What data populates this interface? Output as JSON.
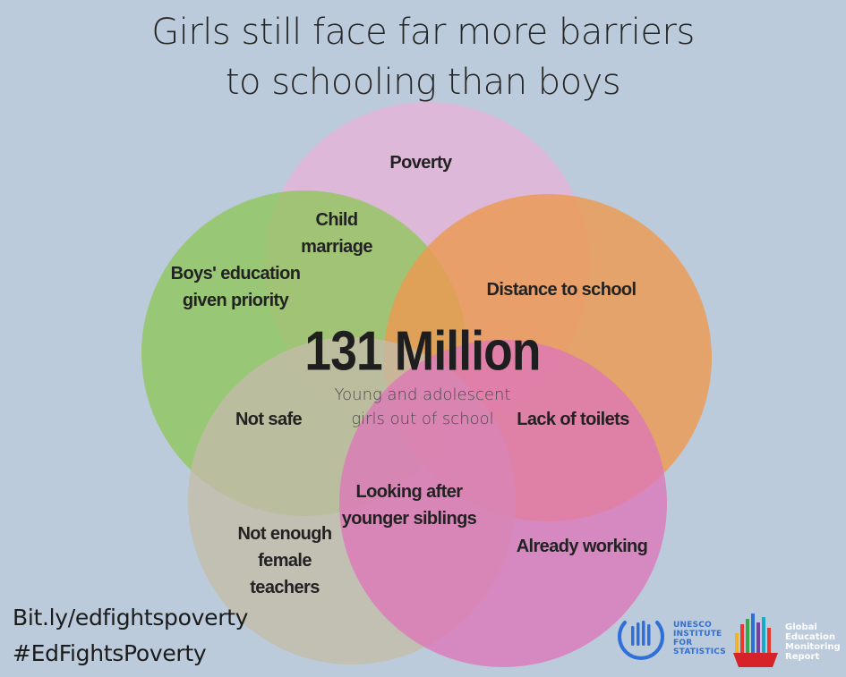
{
  "title": {
    "line1": "Girls still face far more barriers",
    "line2": "to schooling than boys"
  },
  "colors": {
    "background": "#bccbdb",
    "poverty_circle": "#e0b6d8",
    "boys_circle": "#8ec65a",
    "distance_circle": "#ec9a50",
    "safe_circle": "#c3bca9",
    "working_circle": "#de76b8"
  },
  "venn": {
    "labels": {
      "poverty": "Poverty",
      "child_marriage_1": "Child",
      "child_marriage_2": "marriage",
      "boys_priority_1": "Boys' education",
      "boys_priority_2": "given priority",
      "distance": "Distance to school",
      "not_safe": "Not safe",
      "toilets": "Lack of toilets",
      "siblings_1": "Looking after",
      "siblings_2": "younger siblings",
      "teachers_1": "Not enough",
      "teachers_2": "female",
      "teachers_3": "teachers",
      "working": "Already working"
    },
    "center": {
      "value": "131 Million",
      "caption_1": "Young and adolescent",
      "caption_2": "girls out of school"
    }
  },
  "footer": {
    "link": "Bit.ly/edfightspoverty",
    "hashtag": "#EdFightsPoverty"
  },
  "logos": {
    "uis": {
      "icon": "uis-bars-circle-icon",
      "line1": "UNESCO",
      "line2": "INSTITUTE",
      "line3": "FOR",
      "line4": "STATISTICS"
    },
    "gem": {
      "icon": "gem-bar-chart-icon",
      "line1": "Global",
      "line2": "Education",
      "line3": "Monitoring",
      "line4": "Report"
    }
  }
}
